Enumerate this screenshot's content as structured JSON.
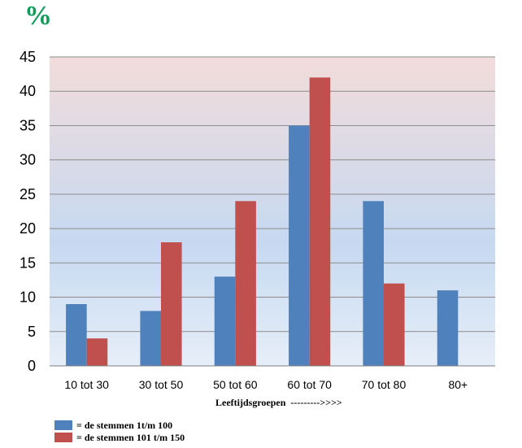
{
  "chart_data": {
    "type": "bar",
    "unit_symbol": "%",
    "categories": [
      "10 tot 30",
      "30 tot 50",
      "50 tot 60",
      "60 tot 70",
      "70 tot 80",
      "80+"
    ],
    "series": [
      {
        "name": "= de stemmen 1t/m 100",
        "color": "#4f81bd",
        "values": [
          9,
          8,
          13,
          35,
          24,
          11
        ]
      },
      {
        "name": "= de stemmen 101 t/m 150",
        "color": "#c0504d",
        "values": [
          4,
          18,
          24,
          42,
          12,
          0
        ]
      }
    ],
    "xlabel": "Leeftijdsgroepen  --------->>>>",
    "ylim": [
      0,
      45
    ],
    "yticks": [
      0,
      5,
      10,
      15,
      20,
      25,
      30,
      35,
      40,
      45
    ],
    "grid": true,
    "legend_position": "bottom-left",
    "background_gradient": [
      "#f2dcdb",
      "#c6d9f1",
      "#e6eef8"
    ]
  }
}
